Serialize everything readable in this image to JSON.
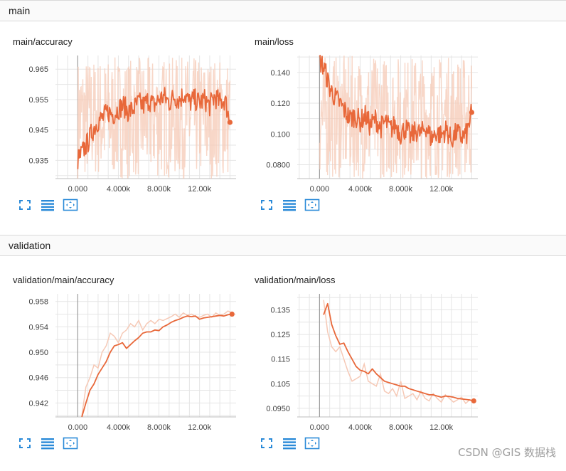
{
  "sections": [
    {
      "title": "main"
    },
    {
      "title": "validation"
    }
  ],
  "theme": {
    "line": "#e8683a",
    "raw": "#f6c9b6",
    "grid": "#e5e5e5",
    "axis": "#9e9e9e",
    "icon": "#2a8ad8"
  },
  "toolbar_icons": [
    "expand-icon",
    "list-icon",
    "fit-domain-icon"
  ],
  "watermark": "CSDN @GIS 数据栈",
  "chart_data": [
    {
      "type": "line",
      "title": "main/accuracy",
      "xlim": [
        -2200,
        15600
      ],
      "ylim": [
        0.929,
        0.9695
      ],
      "x_ticks": [
        0,
        4000,
        8000,
        12000
      ],
      "x_tick_labels": [
        "0.000",
        "4.000k",
        "8.000k",
        "12.00k"
      ],
      "y_ticks": [
        0.935,
        0.945,
        0.955,
        0.965
      ],
      "y_tick_labels": [
        "0.935",
        "0.945",
        "0.955",
        "0.965"
      ],
      "raw_band": [
        0.929,
        0.969
      ],
      "series": [
        {
          "x": [
            0,
            500,
            1000,
            1500,
            2000,
            2500,
            3000,
            3500,
            4000,
            4500,
            5000,
            5500,
            6000,
            6500,
            7000,
            7500,
            8000,
            8500,
            9000,
            9500,
            10000,
            10500,
            11000,
            11500,
            12000,
            12500,
            13000,
            13500,
            14000,
            14500,
            15000
          ],
          "y": [
            0.935,
            0.938,
            0.941,
            0.945,
            0.948,
            0.949,
            0.951,
            0.95,
            0.952,
            0.953,
            0.951,
            0.952,
            0.954,
            0.953,
            0.955,
            0.953,
            0.955,
            0.956,
            0.954,
            0.956,
            0.955,
            0.957,
            0.954,
            0.955,
            0.954,
            0.955,
            0.953,
            0.956,
            0.954,
            0.955,
            0.9475
          ]
        }
      ]
    },
    {
      "type": "line",
      "title": "main/loss",
      "xlim": [
        -2200,
        15600
      ],
      "ylim": [
        0.071,
        0.151
      ],
      "x_ticks": [
        0,
        4000,
        8000,
        12000
      ],
      "x_tick_labels": [
        "0.000",
        "4.000k",
        "8.000k",
        "12.00k"
      ],
      "y_ticks": [
        0.08,
        0.1,
        0.12,
        0.14
      ],
      "y_tick_labels": [
        "0.0800",
        "0.100",
        "0.120",
        "0.140"
      ],
      "raw_band": [
        0.071,
        0.151
      ],
      "series": [
        {
          "x": [
            0,
            500,
            1000,
            1500,
            2000,
            2500,
            3000,
            3500,
            4000,
            4500,
            5000,
            5500,
            6000,
            6500,
            7000,
            7500,
            8000,
            8500,
            9000,
            9500,
            10000,
            10500,
            11000,
            11500,
            12000,
            12500,
            13000,
            13500,
            14000,
            14500,
            15000
          ],
          "y": [
            0.148,
            0.142,
            0.13,
            0.124,
            0.12,
            0.115,
            0.11,
            0.112,
            0.108,
            0.112,
            0.105,
            0.11,
            0.104,
            0.108,
            0.103,
            0.106,
            0.1,
            0.104,
            0.098,
            0.102,
            0.1,
            0.105,
            0.097,
            0.101,
            0.099,
            0.103,
            0.096,
            0.101,
            0.098,
            0.1,
            0.114
          ]
        }
      ]
    },
    {
      "type": "line",
      "title": "validation/main/accuracy",
      "xlim": [
        -2200,
        15600
      ],
      "ylim": [
        0.9398,
        0.9592
      ],
      "x_ticks": [
        0,
        4000,
        8000,
        12000
      ],
      "x_tick_labels": [
        "0.000",
        "4.000k",
        "8.000k",
        "12.00k"
      ],
      "y_ticks": [
        0.942,
        0.946,
        0.95,
        0.954,
        0.958
      ],
      "y_tick_labels": [
        "0.942",
        "0.946",
        "0.950",
        "0.954",
        "0.958"
      ],
      "series": [
        {
          "x": [
            400,
            800,
            1200,
            1600,
            2000,
            2400,
            2800,
            3200,
            3600,
            4000,
            4400,
            4800,
            5200,
            5600,
            6000,
            6400,
            6800,
            7200,
            7600,
            8000,
            8400,
            8800,
            9200,
            9600,
            10000,
            10400,
            10800,
            11200,
            11600,
            12000,
            12400,
            12800,
            13200,
            13600,
            14000,
            14400,
            14800,
            15200
          ],
          "y": [
            0.9395,
            0.942,
            0.944,
            0.945,
            0.9465,
            0.9475,
            0.9485,
            0.95,
            0.951,
            0.9512,
            0.9515,
            0.9506,
            0.9512,
            0.9518,
            0.9523,
            0.953,
            0.9532,
            0.9532,
            0.9535,
            0.9534,
            0.954,
            0.9543,
            0.9547,
            0.955,
            0.9552,
            0.9555,
            0.9557,
            0.9556,
            0.9557,
            0.9552,
            0.9554,
            0.9555,
            0.9556,
            0.9557,
            0.9558,
            0.9557,
            0.9559,
            0.956
          ]
        }
      ],
      "raw": {
        "x": [
          400,
          800,
          1200,
          1600,
          2000,
          2400,
          2800,
          3200,
          3600,
          4000,
          4400,
          4800,
          5200,
          5600,
          6000,
          6400,
          6800,
          7200,
          7600,
          8000,
          8400,
          8800,
          9200,
          9600,
          10000,
          10400,
          10800,
          11200,
          11600,
          12000,
          12400,
          12800,
          13200,
          13600,
          14000,
          14400,
          14800,
          15200
        ],
        "y": [
          0.94,
          0.9445,
          0.946,
          0.948,
          0.9475,
          0.95,
          0.951,
          0.953,
          0.9525,
          0.9515,
          0.953,
          0.9535,
          0.9545,
          0.954,
          0.955,
          0.9535,
          0.9545,
          0.955,
          0.9545,
          0.9552,
          0.955,
          0.9553,
          0.9556,
          0.956,
          0.9555,
          0.9562,
          0.9558,
          0.956,
          0.9556,
          0.9555,
          0.9558,
          0.956,
          0.9555,
          0.9562,
          0.9558,
          0.956,
          0.9565,
          0.9562
        ]
      }
    },
    {
      "type": "line",
      "title": "validation/main/loss",
      "xlim": [
        -2200,
        15600
      ],
      "ylim": [
        0.0915,
        0.1415
      ],
      "x_ticks": [
        0,
        4000,
        8000,
        12000
      ],
      "x_tick_labels": [
        "0.000",
        "4.000k",
        "8.000k",
        "12.00k"
      ],
      "y_ticks": [
        0.095,
        0.105,
        0.115,
        0.125,
        0.135
      ],
      "y_tick_labels": [
        "0.0950",
        "0.105",
        "0.115",
        "0.125",
        "0.135"
      ],
      "series": [
        {
          "x": [
            400,
            800,
            1200,
            1600,
            2000,
            2400,
            2800,
            3200,
            3600,
            4000,
            4400,
            4800,
            5200,
            5600,
            6000,
            6400,
            6800,
            7200,
            7600,
            8000,
            8400,
            8800,
            9200,
            9600,
            10000,
            10400,
            10800,
            11200,
            11600,
            12000,
            12400,
            12800,
            13200,
            13600,
            14000,
            14400,
            14800,
            15200
          ],
          "y": [
            0.133,
            0.1375,
            0.129,
            0.1245,
            0.121,
            0.1215,
            0.118,
            0.115,
            0.112,
            0.1105,
            0.11,
            0.109,
            0.111,
            0.109,
            0.1075,
            0.106,
            0.1055,
            0.105,
            0.1045,
            0.104,
            0.104,
            0.103,
            0.1025,
            0.102,
            0.1015,
            0.101,
            0.1005,
            0.1005,
            0.1,
            0.0995,
            0.1,
            0.0998,
            0.0995,
            0.099,
            0.0988,
            0.0986,
            0.0984,
            0.098
          ]
        }
      ],
      "raw": {
        "x": [
          400,
          800,
          1200,
          1600,
          2000,
          2400,
          2800,
          3200,
          3600,
          4000,
          4400,
          4800,
          5200,
          5600,
          6000,
          6400,
          6800,
          7200,
          7600,
          8000,
          8400,
          8800,
          9200,
          9600,
          10000,
          10400,
          10800,
          11200,
          11600,
          12000,
          12400,
          12800,
          13200,
          13600,
          14000,
          14400,
          14800,
          15200
        ],
        "y": [
          0.139,
          0.126,
          0.12,
          0.118,
          0.12,
          0.115,
          0.11,
          0.106,
          0.107,
          0.108,
          0.113,
          0.106,
          0.105,
          0.104,
          0.109,
          0.102,
          0.101,
          0.103,
          0.1,
          0.106,
          0.099,
          0.1,
          0.101,
          0.0985,
          0.102,
          0.099,
          0.098,
          0.101,
          0.099,
          0.0975,
          0.1005,
          0.099,
          0.0975,
          0.0985,
          0.0995,
          0.097,
          0.0985,
          0.0975
        ]
      }
    }
  ]
}
